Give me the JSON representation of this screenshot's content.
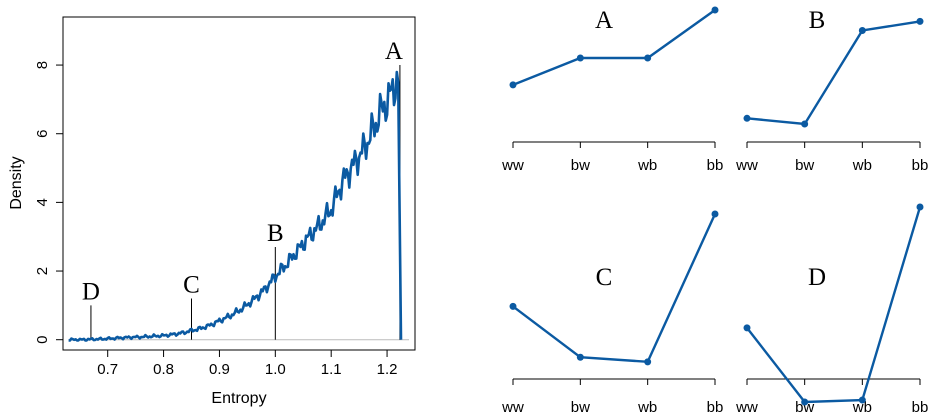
{
  "colors": {
    "series": "#0b5aa2",
    "baseline": "#bbbbbb",
    "axis": "#000000",
    "marker": "#000000"
  },
  "chart_data": [
    {
      "type": "line",
      "xlabel": "Entropy",
      "ylabel": "Density",
      "xlim": [
        0.62,
        1.25
      ],
      "ylim": [
        -0.3,
        9.4
      ],
      "xticks": [
        0.7,
        0.8,
        0.9,
        1.0,
        1.1,
        1.2
      ],
      "xtick_labels": [
        "0.7",
        "0.8",
        "0.9",
        "1.0",
        "1.1",
        "1.2"
      ],
      "yticks": [
        0,
        2,
        4,
        6,
        8
      ],
      "ytick_labels": [
        "0",
        "2",
        "4",
        "6",
        "8"
      ],
      "series": [
        {
          "x": [
            0.63,
            0.65,
            0.67,
            0.69,
            0.7,
            0.72,
            0.74,
            0.76,
            0.78,
            0.8,
            0.82,
            0.84,
            0.85,
            0.86,
            0.88,
            0.9,
            0.92,
            0.94,
            0.96,
            0.98,
            1.0,
            1.02,
            1.04,
            1.06,
            1.08,
            1.1,
            1.12,
            1.14,
            1.16,
            1.18,
            1.19,
            1.2,
            1.21,
            1.215,
            1.22,
            1.225
          ],
          "y": [
            0.0,
            0.0,
            0.01,
            0.02,
            0.03,
            0.05,
            0.07,
            0.08,
            0.1,
            0.12,
            0.16,
            0.22,
            0.27,
            0.3,
            0.4,
            0.55,
            0.7,
            0.9,
            1.15,
            1.45,
            1.85,
            2.2,
            2.6,
            3.0,
            3.35,
            3.8,
            4.6,
            5.1,
            5.6,
            6.3,
            6.7,
            6.9,
            7.3,
            7.45,
            7.5,
            0.0
          ]
        }
      ],
      "markers": [
        {
          "label": "A",
          "x": 1.223,
          "y_top": 8.0
        },
        {
          "label": "B",
          "x": 1.0,
          "y_top": 2.7
        },
        {
          "label": "C",
          "x": 0.85,
          "y_top": 1.2
        },
        {
          "label": "D",
          "x": 0.67,
          "y_top": 1.0
        }
      ]
    },
    {
      "type": "line",
      "title": "A",
      "categories": [
        "ww",
        "bw",
        "wb",
        "bb"
      ],
      "values": [
        0.22,
        0.5,
        0.5,
        1.0
      ],
      "ylim": [
        0,
        1
      ]
    },
    {
      "type": "line",
      "title": "B",
      "categories": [
        "ww",
        "bw",
        "wb",
        "bb"
      ],
      "values": [
        0.05,
        0.0,
        0.82,
        0.9
      ],
      "ylim": [
        0,
        1
      ]
    },
    {
      "type": "line",
      "title": "C",
      "categories": [
        "ww",
        "bw",
        "wb",
        "bb"
      ],
      "values": [
        0.4,
        0.07,
        0.04,
        1.0
      ],
      "ylim": [
        0,
        1
      ]
    },
    {
      "type": "line",
      "title": "D",
      "categories": [
        "ww",
        "bw",
        "wb",
        "bb"
      ],
      "values": [
        0.38,
        0.0,
        0.01,
        1.0
      ],
      "ylim": [
        0,
        1
      ]
    }
  ]
}
